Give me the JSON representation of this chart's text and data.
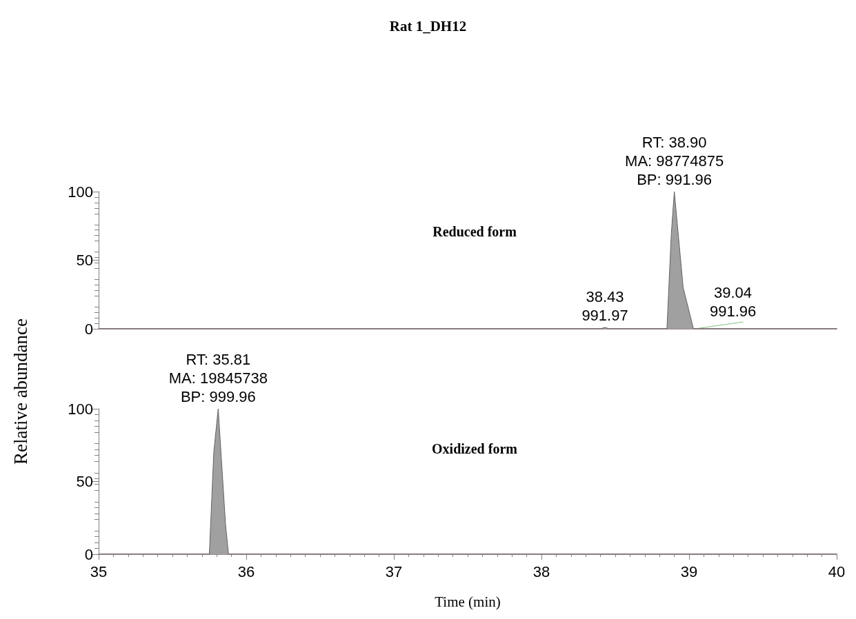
{
  "chart_data": [
    {
      "type": "area",
      "title": "Rat 1_DH12",
      "subtitle": "Reduced form",
      "ylabel": "Relative abundance",
      "x": [
        35,
        38.4,
        38.43,
        38.46,
        38.85,
        38.88,
        38.9,
        38.96,
        39.03,
        40
      ],
      "series": [
        {
          "color": "#a0a0a0",
          "values": [
            0,
            0,
            1,
            0,
            0,
            70,
            100,
            30,
            0,
            0
          ]
        }
      ],
      "xlim": [
        35,
        40
      ],
      "xticks": [
        35,
        36,
        37,
        38,
        39,
        40
      ],
      "ylim": [
        0,
        100
      ],
      "yticks": [
        0,
        50,
        100
      ],
      "tick_labels": "y",
      "grid": false,
      "annotations": [
        {
          "text": "RT: 38.90\nMA: 98774875\nBP: 991.96",
          "x": 38.9,
          "y": 100
        },
        {
          "text": "38.43\n991.97",
          "x": 38.43,
          "y": 1
        },
        {
          "text": "39.04\n991.96",
          "x": 39.04,
          "y": 0
        }
      ]
    },
    {
      "type": "area",
      "subtitle": "Oxidized form",
      "xlabel": "Time (min)",
      "x": [
        35,
        35.75,
        35.78,
        35.81,
        35.86,
        35.88,
        40
      ],
      "series": [
        {
          "color": "#a0a0a0",
          "values": [
            0,
            0,
            70,
            100,
            20,
            0,
            0
          ]
        }
      ],
      "xlim": [
        35,
        40
      ],
      "xticks": [
        35,
        36,
        37,
        38,
        39,
        40
      ],
      "ylim": [
        0,
        100
      ],
      "yticks": [
        0,
        50,
        100
      ],
      "grid": false,
      "annotations": [
        {
          "text": "RT: 35.81\nMA: 19845738\nBP: 999.96",
          "x": 35.81,
          "y": 100
        }
      ]
    }
  ]
}
